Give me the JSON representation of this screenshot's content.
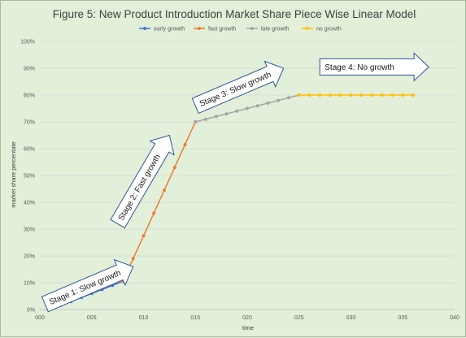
{
  "chart_data": {
    "type": "line",
    "title": "Figure 5: New Product Introduction Market Share Piece Wise Linear Model",
    "xlabel": "time",
    "ylabel": "market share percentate",
    "xlim": [
      0,
      40
    ],
    "ylim": [
      0,
      1
    ],
    "x_ticks": [
      0,
      5,
      10,
      15,
      20,
      25,
      30,
      35,
      40
    ],
    "x_tick_labels": [
      "000",
      "005",
      "010",
      "015",
      "020",
      "025",
      "030",
      "035",
      "040"
    ],
    "y_ticks": [
      0,
      0.1,
      0.2,
      0.3,
      0.4,
      0.5,
      0.6,
      0.7,
      0.8,
      0.9,
      1.0
    ],
    "y_tick_labels": [
      "0%",
      "10%",
      "20%",
      "30%",
      "40%",
      "50%",
      "60%",
      "70%",
      "80%",
      "90%",
      "100%"
    ],
    "grid": true,
    "legend_position": "top",
    "series": [
      {
        "name": "early growth",
        "color": "#4472c4",
        "x": [
          1,
          2,
          3,
          4,
          5,
          6,
          7,
          8
        ],
        "y": [
          0.005,
          0.015,
          0.03,
          0.045,
          0.06,
          0.075,
          0.09,
          0.105
        ]
      },
      {
        "name": "fast growth",
        "color": "#ed7d31",
        "x": [
          8,
          9,
          10,
          11,
          12,
          13,
          14,
          15
        ],
        "y": [
          0.105,
          0.19,
          0.275,
          0.36,
          0.445,
          0.53,
          0.615,
          0.7
        ]
      },
      {
        "name": "late growth",
        "color": "#a5a5a5",
        "x": [
          15,
          16,
          17,
          18,
          19,
          20,
          21,
          22,
          23,
          24,
          25
        ],
        "y": [
          0.7,
          0.71,
          0.72,
          0.73,
          0.74,
          0.75,
          0.76,
          0.77,
          0.78,
          0.79,
          0.8
        ]
      },
      {
        "name": "no growth",
        "color": "#ffc000",
        "x": [
          25,
          26,
          27,
          28,
          29,
          30,
          31,
          32,
          33,
          34,
          35,
          36
        ],
        "y": [
          0.8,
          0.8,
          0.8,
          0.8,
          0.8,
          0.8,
          0.8,
          0.8,
          0.8,
          0.8,
          0.8,
          0.8
        ]
      }
    ],
    "annotations": [
      {
        "text": "Stage 1: Slow growth",
        "x_start": 0.5,
        "y_start": 0.02,
        "x_end": 9,
        "y_end": 0.16
      },
      {
        "text": "Stage 2: Fast growth",
        "x_start": 7.5,
        "y_start": 0.32,
        "x_end": 12.5,
        "y_end": 0.65
      },
      {
        "text": "Stage 3: Slow growth",
        "x_start": 15,
        "y_start": 0.76,
        "x_end": 23.5,
        "y_end": 0.9
      },
      {
        "text": "Stage 4: No growth",
        "x_start": 27,
        "y_start": 0.905,
        "x_end": 37.5,
        "y_end": 0.905
      }
    ]
  }
}
